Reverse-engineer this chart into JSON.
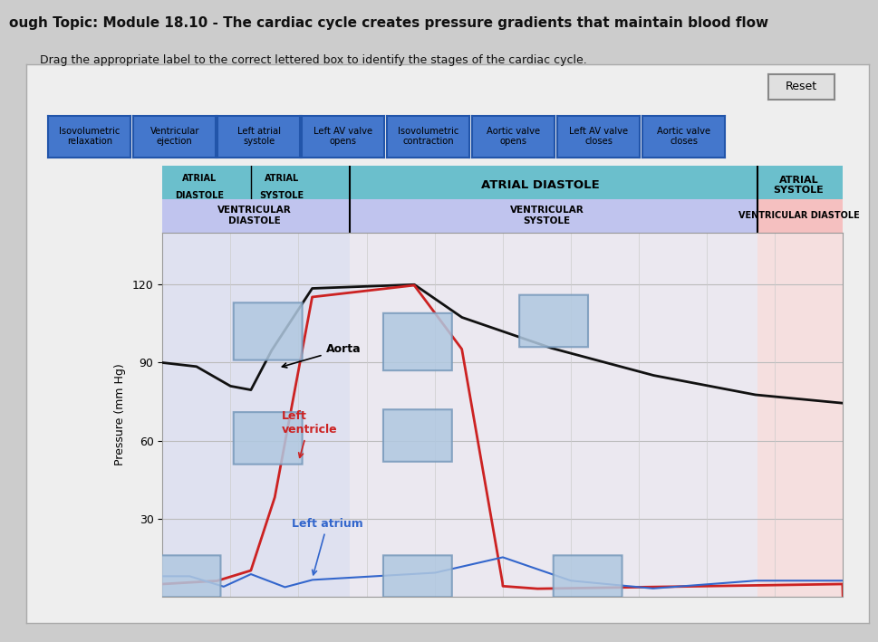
{
  "title": "ough Topic: Module 18.10 - The cardiac cycle creates pressure gradients that maintain blood flow",
  "subtitle": "Drag the appropriate label to the correct lettered box to identify the stages of the cardiac cycle.",
  "bg_color": "#cccccc",
  "inner_bg": "#e8e8e8",
  "button_labels": [
    "Isovolumetric\nrelaxation",
    "Ventricular\nejection",
    "Left atrial\nsystole",
    "Left AV valve\nopens",
    "Isovolumetric\ncontraction",
    "Aortic valve\nopens",
    "Left AV valve\ncloses",
    "Aortic valve\ncloses"
  ],
  "button_color": "#4477cc",
  "ylabel": "Pressure (mm Hg)",
  "yticks": [
    30,
    60,
    90,
    120
  ],
  "aorta_label": "Aorta",
  "lv_label": "Left\nventricle",
  "la_label": "Left atrium",
  "aorta_color": "#111111",
  "lv_color": "#cc2222",
  "la_color": "#3366cc",
  "teal_color": "#6bbfcc",
  "lavender_color": "#c0c4ee",
  "pink_color": "#f5c0c0"
}
